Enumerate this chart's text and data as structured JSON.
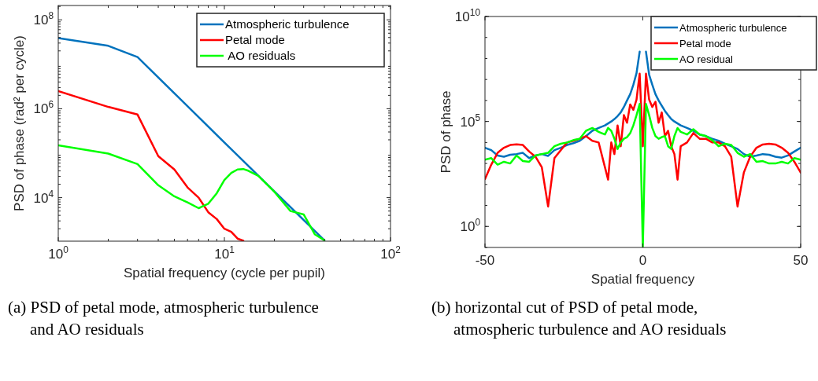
{
  "chart_data": [
    {
      "type": "line",
      "title": "(a) PSD of petal mode, atmospheric turbulence and AO residuals",
      "xlabel": "Spatial frequency (cycle per pupil)",
      "ylabel": "PSD of phase (rad² per cycle)",
      "log": "xy",
      "xlim": [
        1,
        100
      ],
      "xticks": [
        {
          "value": 1,
          "label": "10$^{0}$"
        },
        {
          "value": 10,
          "label": "10$^{1}$"
        },
        {
          "value": 100,
          "label": "10$^{2}$"
        }
      ],
      "ylim": [
        1050,
        210000000.0
      ],
      "yticks": [
        {
          "value": 10000,
          "label": "10$^{4}$"
        },
        {
          "value": 1000000,
          "label": "10$^{6}$"
        },
        {
          "value": 100000000,
          "label": "10$^{8}$"
        }
      ],
      "grid": false,
      "legend": "top right",
      "line_style": "solid",
      "series": [
        {
          "name": "Atmospheric turbulence",
          "color": "#0072bd",
          "x": [
            1,
            2,
            3,
            10,
            40
          ],
          "values": [
            39000000.0,
            26000000.0,
            14500000.0,
            174000.0,
            1100
          ]
        },
        {
          "name": "Petal mode",
          "color": "#ff0000",
          "x": [
            1,
            2,
            3,
            4,
            5,
            6,
            7,
            8,
            9,
            10,
            11,
            12,
            13
          ],
          "values": [
            2500000.0,
            1100000.0,
            740000.0,
            86000.0,
            43000.0,
            17000.0,
            10000.0,
            4700,
            3300,
            2000,
            1700,
            1200,
            1070
          ]
        },
        {
          "name": " AO residuals",
          "color": "#00ff00",
          "x": [
            1,
            2,
            3,
            4,
            5,
            6,
            7,
            8,
            9,
            10,
            11,
            12,
            13,
            14,
            16,
            20,
            25,
            30,
            35,
            40
          ],
          "values": [
            150000,
            98000,
            57000,
            19000,
            10700,
            7800,
            5800,
            7300,
            12600,
            25000,
            36000,
            43000,
            44000,
            40000,
            31000,
            13500,
            5000,
            4200,
            1500,
            1100
          ]
        }
      ]
    },
    {
      "type": "line",
      "title": "(b) horizontal cut of PSD of petal mode, atmospheric turbulence and AO residuals",
      "xlabel": "Spatial frequency",
      "ylabel": "PSD of phase",
      "log": "y",
      "xlim": [
        -50,
        50
      ],
      "xticks": [
        -50,
        0,
        50
      ],
      "ylim": [
        0.1,
        10000000000.0
      ],
      "yticks": [
        {
          "value": 1,
          "label": "10$^{0}$"
        },
        {
          "value": 100000,
          "label": "10$^{5}$"
        },
        {
          "value": 10000000000,
          "label": "10$^{10}$"
        }
      ],
      "grid": false,
      "legend": "top right",
      "line_style": "solid",
      "x": [
        -50,
        -48,
        -46,
        -44,
        -42,
        -40,
        -38,
        -36,
        -34,
        -32,
        -30,
        -28,
        -26,
        -24,
        -22,
        -20,
        -18,
        -16,
        -14,
        -12,
        -11,
        -10,
        -9,
        -8,
        -7,
        -6,
        -5,
        -4,
        -3,
        -2,
        -1,
        0,
        1,
        2,
        3,
        4,
        5,
        6,
        7,
        8,
        9,
        10,
        11,
        12,
        14,
        16,
        18,
        20,
        22,
        24,
        26,
        28,
        30,
        32,
        34,
        36,
        38,
        40,
        42,
        44,
        46,
        48,
        50
      ],
      "series": [
        {
          "name": "Atmospheric turbulence",
          "color": "#0072bd",
          "values": [
            5600,
            4300,
            2400,
            2100,
            2600,
            2800,
            3200,
            1800,
            2400,
            2800,
            2300,
            4300,
            5600,
            7600,
            9300,
            12000,
            20000,
            36000,
            49000,
            65000,
            81000,
            100000.0,
            130000.0,
            180000.0,
            270000.0,
            490000.0,
            1000000.0,
            2000000.0,
            5600000.0,
            20000000.0,
            210000000.0,
            null,
            210000000.0,
            17000000.0,
            5600000.0,
            2000000.0,
            1000000.0,
            560000.0,
            320000.0,
            200000.0,
            130000.0,
            100000.0,
            81000,
            65000,
            49000,
            36000,
            24000,
            20000,
            15000,
            12000,
            8700,
            6600,
            4900,
            2800,
            2100,
            2400,
            2800,
            2600,
            2100,
            1900,
            2400,
            3700,
            5600
          ]
        },
        {
          "name": "Petal mode",
          "color": "#ff0000",
          "values": [
            180,
            880,
            3200,
            5600,
            7600,
            8200,
            7600,
            3700,
            2100,
            660,
            8.9,
            1800,
            4300,
            10000,
            12000,
            15000,
            20000,
            12000,
            10000,
            660,
            170,
            10000,
            2800,
            65000,
            6600,
            200000.0,
            87000,
            650000.0,
            360000.0,
            1100000.0,
            19000000.0,
            6600,
            19000000.0,
            1100000.0,
            490000.0,
            870000.0,
            87000,
            270000.0,
            20000,
            36000,
            6600,
            2800,
            170,
            6600,
            10000,
            28000,
            15000,
            15000,
            10000,
            10000,
            6600,
            2100,
            8.9,
            370,
            2100,
            5600,
            8000,
            8700,
            8000,
            5600,
            3200,
            1200,
            370
          ]
        },
        {
          "name": "AO residual",
          "color": "#00ff00",
          "values": [
            1500,
            1800,
            880,
            1200,
            1000,
            2400,
            1300,
            1200,
            2400,
            2800,
            3200,
            6600,
            8700,
            10000,
            13000,
            15000,
            36000,
            49000,
            32000,
            24000,
            49000,
            36000,
            15000,
            4900,
            10000,
            15000,
            18000,
            28000,
            65000,
            200000.0,
            690000.0,
            0.1,
            690000.0,
            200000.0,
            49000,
            20000,
            15000,
            18000,
            20000,
            6600,
            4900,
            20000,
            49000,
            32000,
            24000,
            43000,
            24000,
            20000,
            13000,
            6600,
            8700,
            7600,
            3200,
            2100,
            2800,
            1200,
            1300,
            1000,
            1000,
            1200,
            1000,
            1800,
            1500
          ]
        }
      ]
    }
  ]
}
